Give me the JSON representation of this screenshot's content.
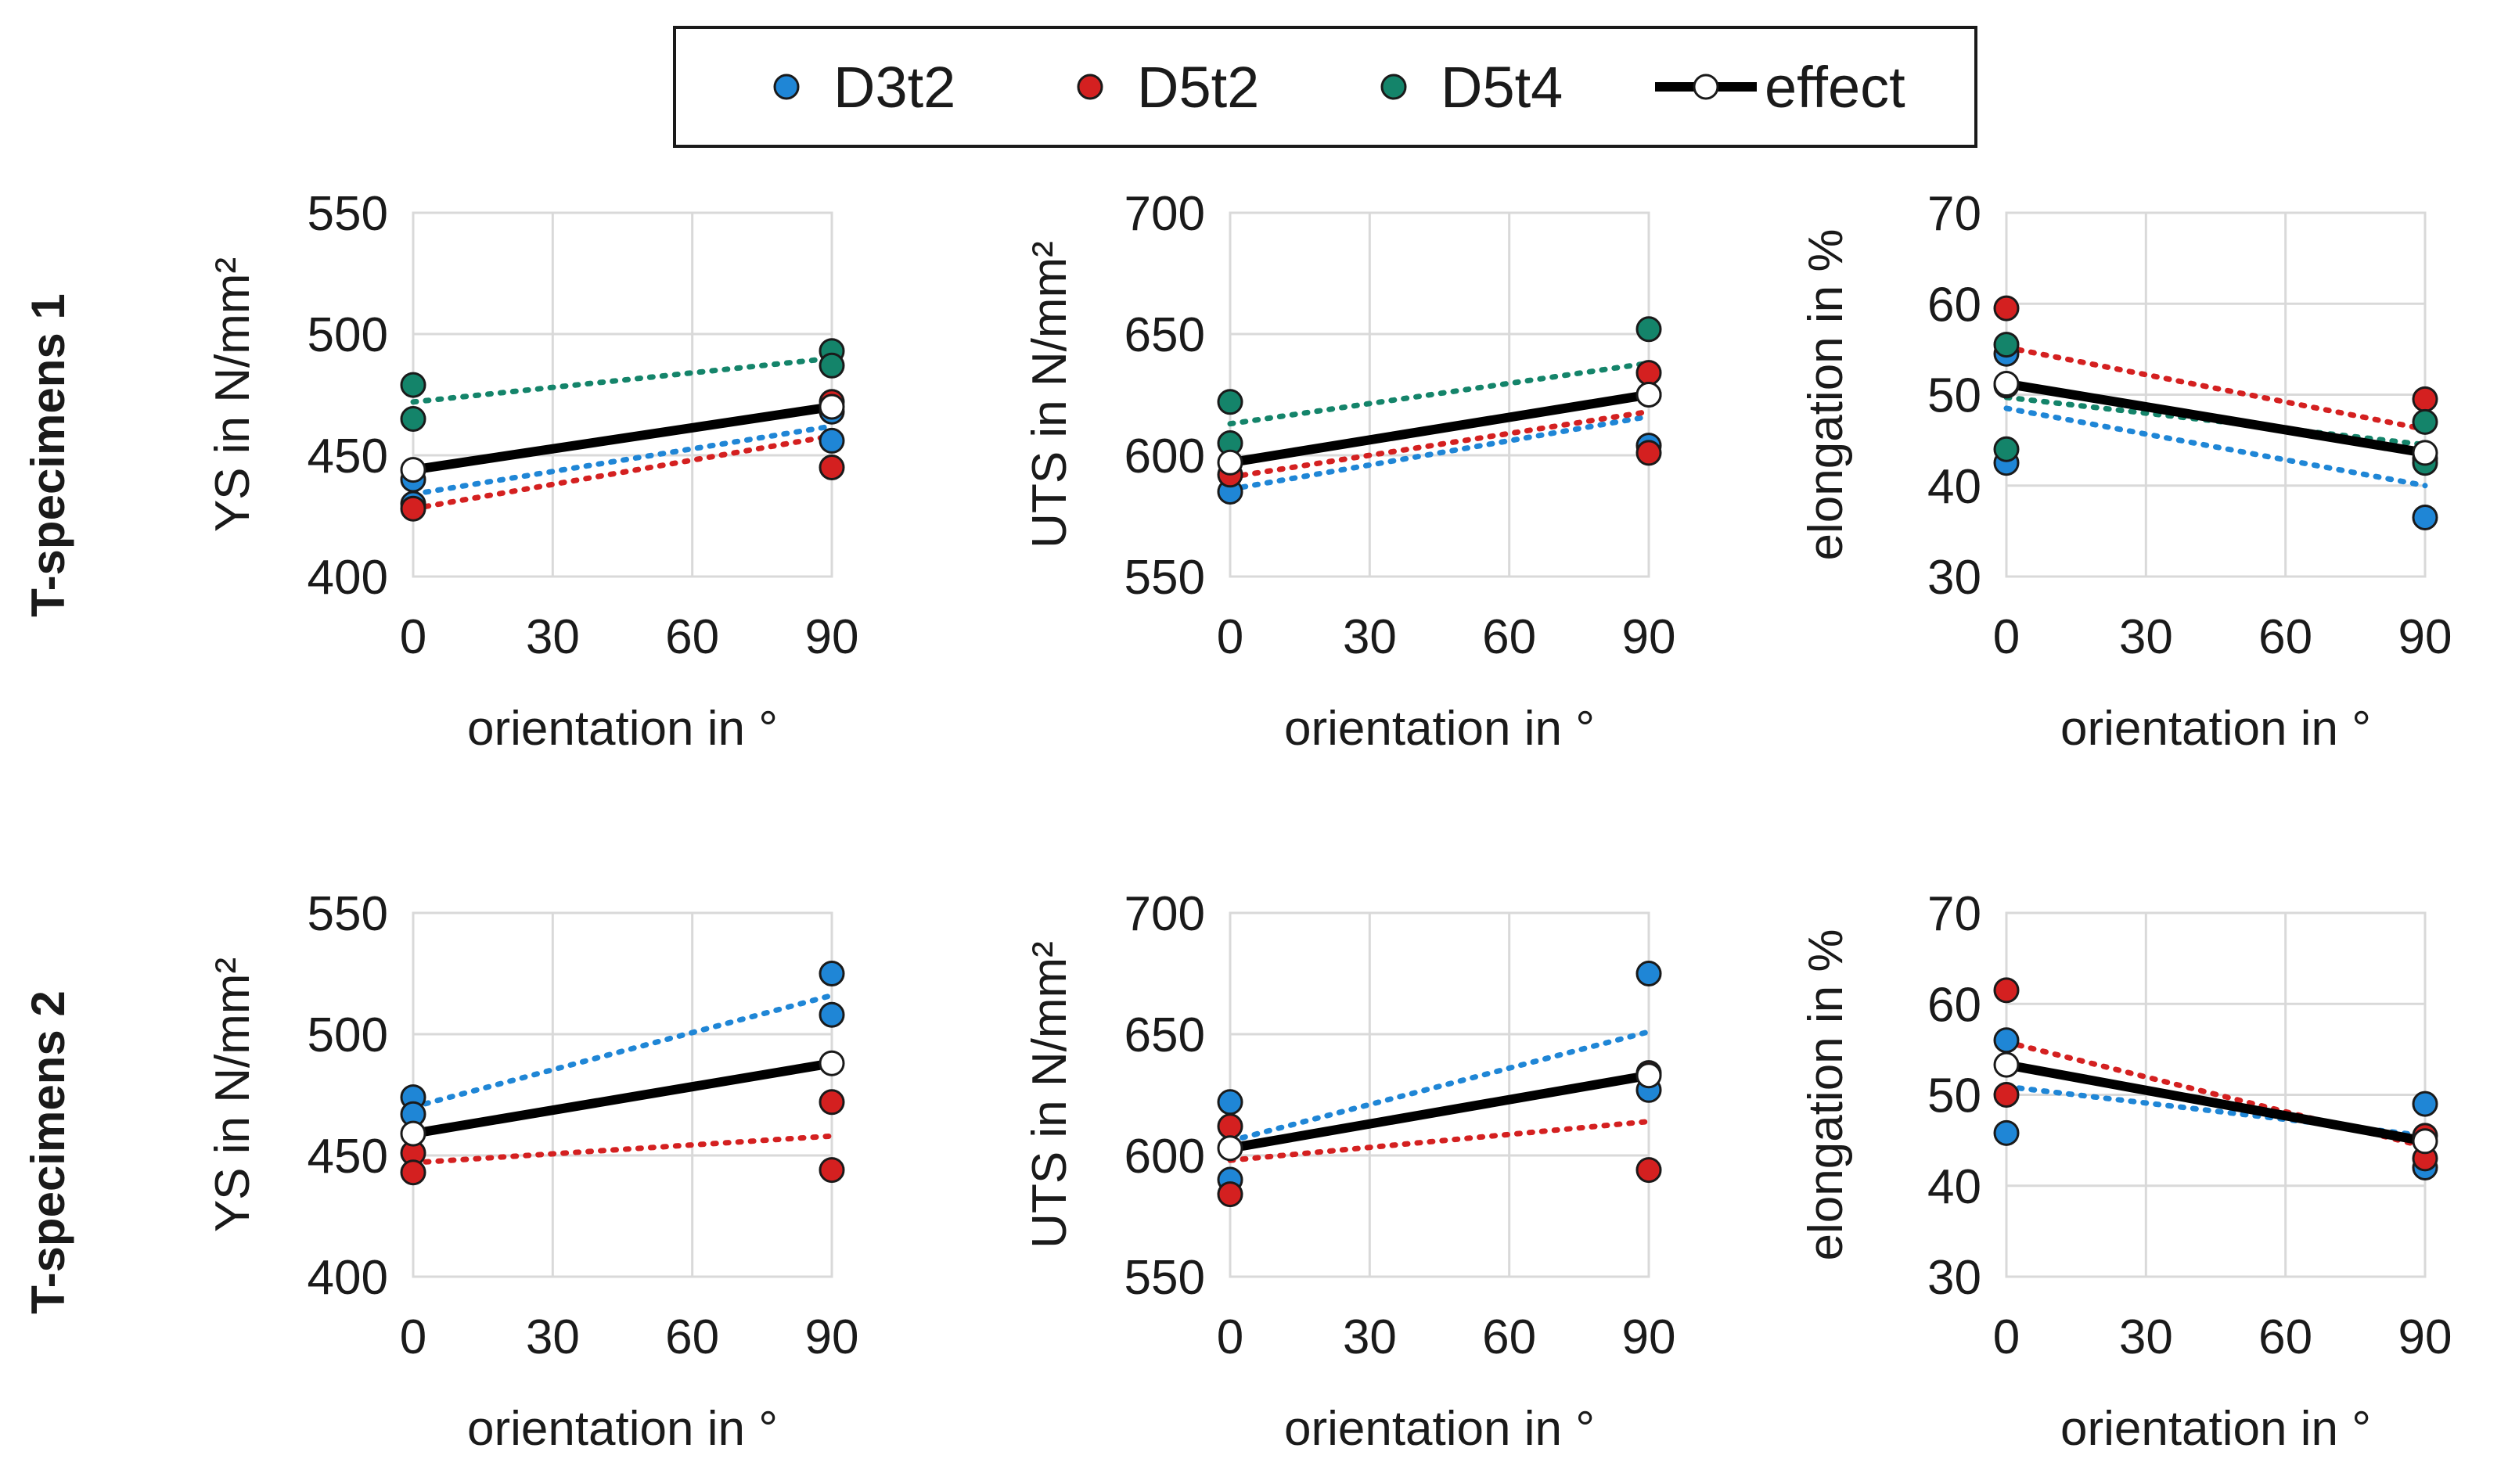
{
  "colors": {
    "D3t2": "#1f86d6",
    "D5t2": "#d42020",
    "D5t4": "#14846a",
    "effect_line": "#000000",
    "effect_marker_fill": "#ffffff",
    "grid": "#d9d9d9"
  },
  "legend": {
    "items": [
      {
        "key": "D3t2",
        "label": "D3t2",
        "style": "marker"
      },
      {
        "key": "D5t2",
        "label": "D5t2",
        "style": "marker"
      },
      {
        "key": "D5t4",
        "label": "D5t4",
        "style": "marker"
      },
      {
        "key": "effect",
        "label": "effect",
        "style": "line-marker"
      }
    ]
  },
  "row_labels": [
    "T-specimens 1",
    "T-specimens 2"
  ],
  "chart_data": [
    {
      "type": "scatter",
      "row_label": "T-specimens 1",
      "xlabel": "orientation in °",
      "ylabel": "YS in N/mm²",
      "xlim": [
        0,
        90
      ],
      "xticks": [
        0,
        30,
        60,
        90
      ],
      "ylim": [
        400,
        550
      ],
      "yticks": [
        400,
        450,
        500,
        550
      ],
      "series": [
        {
          "name": "D3t2",
          "x": [
            0,
            0,
            90,
            90
          ],
          "y": [
            440,
            430,
            456,
            468
          ],
          "trend": [
            [
              0,
              434
            ],
            [
              90,
              462
            ]
          ]
        },
        {
          "name": "D5t2",
          "x": [
            0,
            90,
            90
          ],
          "y": [
            428,
            472,
            445
          ],
          "trend": [
            [
              0,
              428
            ],
            [
              90,
              458
            ]
          ]
        },
        {
          "name": "D5t4",
          "x": [
            0,
            0,
            90,
            90
          ],
          "y": [
            479,
            465,
            493,
            487
          ],
          "trend": [
            [
              0,
              472
            ],
            [
              90,
              490
            ]
          ]
        }
      ],
      "effect": {
        "x": [
          0,
          90
        ],
        "y": [
          444,
          470
        ]
      }
    },
    {
      "type": "scatter",
      "row_label": "T-specimens 1",
      "xlabel": "orientation in °",
      "ylabel": "UTS in N/mm²",
      "xlim": [
        0,
        90
      ],
      "xticks": [
        0,
        30,
        60,
        90
      ],
      "ylim": [
        550,
        700
      ],
      "yticks": [
        550,
        600,
        650,
        700
      ],
      "series": [
        {
          "name": "D3t2",
          "x": [
            0,
            90
          ],
          "y": [
            585,
            604
          ],
          "trend": [
            [
              0,
              586
            ],
            [
              90,
              616
            ]
          ]
        },
        {
          "name": "D5t2",
          "x": [
            0,
            90,
            90
          ],
          "y": [
            592,
            634,
            601
          ],
          "trend": [
            [
              0,
              591
            ],
            [
              90,
              618
            ]
          ]
        },
        {
          "name": "D5t4",
          "x": [
            0,
            0,
            90,
            90
          ],
          "y": [
            622,
            605,
            652,
            625
          ],
          "trend": [
            [
              0,
              613
            ],
            [
              90,
              638
            ]
          ]
        }
      ],
      "effect": {
        "x": [
          0,
          90
        ],
        "y": [
          597,
          625
        ]
      }
    },
    {
      "type": "scatter",
      "row_label": "T-specimens 1",
      "xlabel": "orientation in °",
      "ylabel": "elongation in %",
      "xlim": [
        0,
        90
      ],
      "xticks": [
        0,
        30,
        60,
        90
      ],
      "ylim": [
        30,
        70
      ],
      "yticks": [
        30,
        40,
        50,
        60,
        70
      ],
      "series": [
        {
          "name": "D3t2",
          "x": [
            0,
            0,
            90
          ],
          "y": [
            54.5,
            42.5,
            36.5
          ],
          "trend": [
            [
              0,
              48.5
            ],
            [
              90,
              40
            ]
          ]
        },
        {
          "name": "D5t2",
          "x": [
            0,
            0,
            90,
            90
          ],
          "y": [
            59.5,
            51,
            49.5,
            43
          ],
          "trend": [
            [
              0,
              55.2
            ],
            [
              90,
              46.2
            ]
          ]
        },
        {
          "name": "D5t4",
          "x": [
            0,
            0,
            90,
            90
          ],
          "y": [
            55.5,
            44,
            47,
            42.5
          ],
          "trend": [
            [
              0,
              49.7
            ],
            [
              90,
              44.5
            ]
          ]
        }
      ],
      "effect": {
        "x": [
          0,
          90
        ],
        "y": [
          51.2,
          43.6
        ]
      }
    },
    {
      "type": "scatter",
      "row_label": "T-specimens 2",
      "xlabel": "orientation in °",
      "ylabel": "YS in N/mm²",
      "xlim": [
        0,
        90
      ],
      "xticks": [
        0,
        30,
        60,
        90
      ],
      "ylim": [
        400,
        550
      ],
      "yticks": [
        400,
        450,
        500,
        550
      ],
      "series": [
        {
          "name": "D3t2",
          "x": [
            0,
            0,
            90,
            90
          ],
          "y": [
            474,
            467,
            525,
            508
          ],
          "trend": [
            [
              0,
              470
            ],
            [
              90,
              516
            ]
          ]
        },
        {
          "name": "D5t2",
          "x": [
            0,
            0,
            90,
            90
          ],
          "y": [
            451,
            443,
            472,
            444
          ],
          "trend": [
            [
              0,
              447
            ],
            [
              90,
              458
            ]
          ]
        }
      ],
      "effect": {
        "x": [
          0,
          90
        ],
        "y": [
          459,
          488
        ]
      }
    },
    {
      "type": "scatter",
      "row_label": "T-specimens 2",
      "xlabel": "orientation in °",
      "ylabel": "UTS in N/mm²",
      "xlim": [
        0,
        90
      ],
      "xticks": [
        0,
        30,
        60,
        90
      ],
      "ylim": [
        550,
        700
      ],
      "yticks": [
        550,
        600,
        650,
        700
      ],
      "series": [
        {
          "name": "D3t2",
          "x": [
            0,
            0,
            90,
            90
          ],
          "y": [
            622,
            590,
            675,
            627
          ],
          "trend": [
            [
              0,
              606
            ],
            [
              90,
              651
            ]
          ]
        },
        {
          "name": "D5t2",
          "x": [
            0,
            0,
            90,
            90
          ],
          "y": [
            612,
            584,
            634,
            594
          ],
          "trend": [
            [
              0,
              598
            ],
            [
              90,
              614
            ]
          ]
        }
      ],
      "effect": {
        "x": [
          0,
          90
        ],
        "y": [
          603,
          633
        ]
      }
    },
    {
      "type": "scatter",
      "row_label": "T-specimens 2",
      "xlabel": "orientation in °",
      "ylabel": "elongation in %",
      "xlim": [
        0,
        90
      ],
      "xticks": [
        0,
        30,
        60,
        90
      ],
      "ylim": [
        30,
        70
      ],
      "yticks": [
        30,
        40,
        50,
        60,
        70
      ],
      "series": [
        {
          "name": "D3t2",
          "x": [
            0,
            0,
            90,
            90
          ],
          "y": [
            56,
            45.8,
            49,
            42
          ],
          "trend": [
            [
              0,
              50.9
            ],
            [
              90,
              45.5
            ]
          ]
        },
        {
          "name": "D5t2",
          "x": [
            0,
            0,
            90,
            90
          ],
          "y": [
            61.5,
            50,
            45.5,
            43
          ],
          "trend": [
            [
              0,
              55.8
            ],
            [
              90,
              44.3
            ]
          ]
        }
      ],
      "effect": {
        "x": [
          0,
          90
        ],
        "y": [
          53.3,
          44.9
        ]
      }
    }
  ]
}
